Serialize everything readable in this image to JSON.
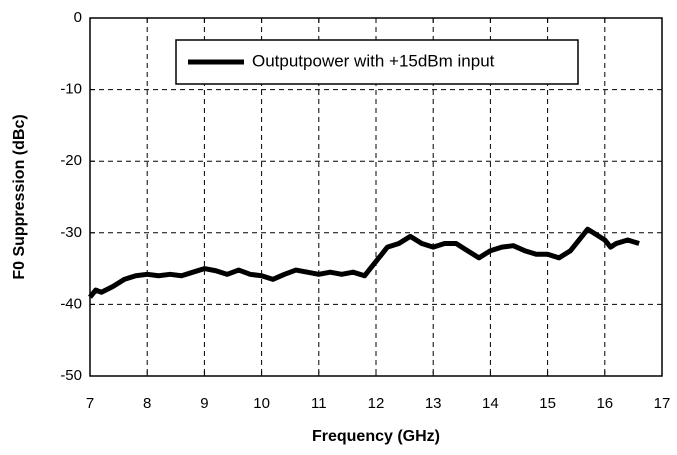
{
  "chart_data": {
    "type": "line",
    "xlabel": "Frequency (GHz)",
    "ylabel": "F0 Suppression (dBc)",
    "x": [
      7.0,
      7.1,
      7.2,
      7.4,
      7.6,
      7.8,
      8.0,
      8.2,
      8.4,
      8.6,
      8.8,
      9.0,
      9.2,
      9.4,
      9.6,
      9.8,
      10.0,
      10.2,
      10.4,
      10.6,
      10.8,
      11.0,
      11.2,
      11.4,
      11.6,
      11.8,
      11.9,
      12.0,
      12.1,
      12.2,
      12.4,
      12.6,
      12.8,
      13.0,
      13.2,
      13.4,
      13.6,
      13.8,
      14.0,
      14.2,
      14.4,
      14.6,
      14.8,
      15.0,
      15.2,
      15.4,
      15.6,
      15.7,
      15.8,
      16.0,
      16.1,
      16.2,
      16.4,
      16.6
    ],
    "series": [
      {
        "name": "Outputpower with +15dBm input",
        "color": "#000000",
        "values": [
          -39,
          -38,
          -38.3,
          -37.5,
          -36.5,
          -36,
          -35.8,
          -36,
          -35.8,
          -36,
          -35.5,
          -35,
          -35.3,
          -35.8,
          -35.2,
          -35.8,
          -36,
          -36.5,
          -35.8,
          -35.2,
          -35.5,
          -35.8,
          -35.5,
          -35.8,
          -35.5,
          -36,
          -35,
          -34,
          -33,
          -32,
          -31.5,
          -30.5,
          -31.5,
          -32,
          -31.5,
          -31.5,
          -32.5,
          -33.5,
          -32.5,
          -32,
          -31.8,
          -32.5,
          -33,
          -33,
          -33.5,
          -32.5,
          -30.5,
          -29.5,
          -30,
          -31,
          -32,
          -31.5,
          -31,
          -31.5
        ]
      }
    ],
    "xlim": [
      7,
      17
    ],
    "xticks": [
      7,
      8,
      9,
      10,
      11,
      12,
      13,
      14,
      15,
      16,
      17
    ],
    "ylim": [
      -50,
      0
    ],
    "yticks": [
      0,
      -10,
      -20,
      -30,
      -40,
      -50
    ],
    "grid": true,
    "legend": "top"
  }
}
